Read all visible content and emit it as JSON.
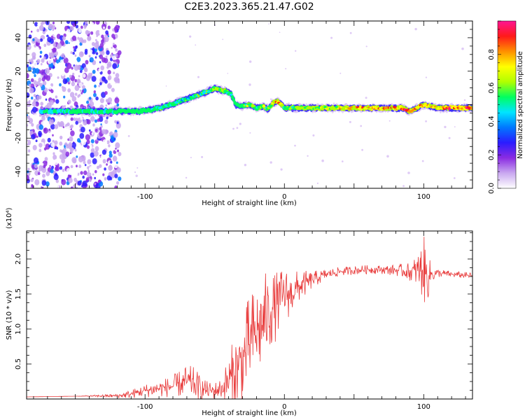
{
  "figure": {
    "title": "C2E3.2023.365.21.47.G02"
  },
  "chart_data": [
    {
      "type": "heatmap",
      "title": "",
      "xlabel": "Height of straight line (km)",
      "ylabel": "Frequency (Hz)",
      "xlim": [
        -185,
        135
      ],
      "ylim": [
        -50,
        50
      ],
      "xticks": [
        -100,
        0,
        100
      ],
      "yticks": [
        -40,
        -20,
        0,
        20,
        40
      ],
      "xtick_labels": [
        "-100",
        "0",
        "100"
      ],
      "ytick_labels": [
        "-40",
        "-20",
        "0",
        "20",
        "40"
      ],
      "colorbar": {
        "label": "Normalized spectral amplitude",
        "range": [
          0,
          1
        ],
        "ticks": [
          0.0,
          0.2,
          0.4,
          0.6,
          0.8
        ],
        "tick_labels": [
          "0.0",
          "0.2",
          "0.4",
          "0.6",
          "0.8"
        ],
        "colormap": [
          "#ffffff",
          "#c9a8f0",
          "#8a2be2",
          "#2b1cff",
          "#0078ff",
          "#00e5ff",
          "#00ff60",
          "#b0ff00",
          "#ffff00",
          "#ff9000",
          "#ff1a1a",
          "#ff1493"
        ]
      },
      "noise_region": {
        "x_range": [
          -185,
          -118
        ],
        "y_range": [
          -50,
          50
        ]
      },
      "ridge": {
        "x": [
          -175,
          -160,
          -140,
          -120,
          -105,
          -95,
          -85,
          -75,
          -65,
          -55,
          -50,
          -47,
          -42,
          -38,
          -35,
          -30,
          -25,
          -20,
          -15,
          -12,
          -8,
          -5,
          -2,
          0,
          5,
          15,
          30,
          50,
          70,
          85,
          90,
          95,
          100,
          110,
          120,
          135
        ],
        "y": [
          -4,
          -4,
          -4,
          -4,
          -4,
          -3,
          -1,
          2,
          5,
          8,
          10,
          9,
          8,
          6,
          0,
          -1,
          0,
          -2,
          -1,
          -3,
          1,
          2,
          0,
          -2,
          -2,
          -2,
          -2,
          -2,
          -2,
          -2,
          -4,
          -2,
          0,
          -2,
          -2,
          -2
        ],
        "amp": [
          0.35,
          0.4,
          0.42,
          0.45,
          0.5,
          0.55,
          0.55,
          0.55,
          0.55,
          0.6,
          0.65,
          0.62,
          0.7,
          0.55,
          0.5,
          0.55,
          0.7,
          0.6,
          0.75,
          0.6,
          0.8,
          0.95,
          0.7,
          0.6,
          0.6,
          0.65,
          0.75,
          0.85,
          0.9,
          0.92,
          0.95,
          0.9,
          0.8,
          0.85,
          0.95,
          0.98
        ]
      }
    },
    {
      "type": "line",
      "title": "",
      "xlabel": "Height of straight line (km)",
      "ylabel": "SNR (10 * v/v)",
      "y_scale_label": "(x10⁴)",
      "xlim": [
        -185,
        135
      ],
      "ylim": [
        0,
        24000
      ],
      "xticks": [
        -100,
        0,
        100
      ],
      "yticks": [
        5000,
        10000,
        15000,
        20000
      ],
      "xtick_labels": [
        "-100",
        "0",
        "100"
      ],
      "ytick_labels": [
        "0.5",
        "1.0",
        "1.5",
        "2.0"
      ],
      "line_color": "#e83a3a",
      "series": [
        {
          "x": [
            -185,
            -150,
            -120,
            -110,
            -100,
            -90,
            -80,
            -70,
            -65,
            -60,
            -55,
            -50,
            -45,
            -40,
            -35,
            -30,
            -25,
            -20,
            -15,
            -10,
            -5,
            0,
            5,
            10,
            20,
            30,
            40,
            50,
            60,
            70,
            80,
            90,
            95,
            100,
            102,
            105,
            110,
            120,
            135
          ],
          "y": [
            300,
            400,
            450,
            700,
            1200,
            1500,
            1800,
            2500,
            2200,
            1500,
            1200,
            1200,
            1500,
            2500,
            4000,
            5500,
            8000,
            9500,
            11000,
            12500,
            13500,
            15000,
            15000,
            16000,
            17000,
            17800,
            18200,
            18400,
            18500,
            18500,
            18400,
            18200,
            18300,
            18500,
            17500,
            17800,
            18000,
            17800,
            17600
          ],
          "amplitude": [
            0,
            0,
            200,
            400,
            600,
            800,
            1000,
            1500,
            1500,
            1200,
            800,
            800,
            1000,
            2500,
            3500,
            4000,
            4500,
            4500,
            4500,
            3500,
            3000,
            2500,
            2000,
            1500,
            800,
            500,
            400,
            400,
            400,
            400,
            500,
            800,
            1500,
            3000,
            3000,
            1000,
            400,
            300,
            300
          ]
        }
      ]
    }
  ]
}
